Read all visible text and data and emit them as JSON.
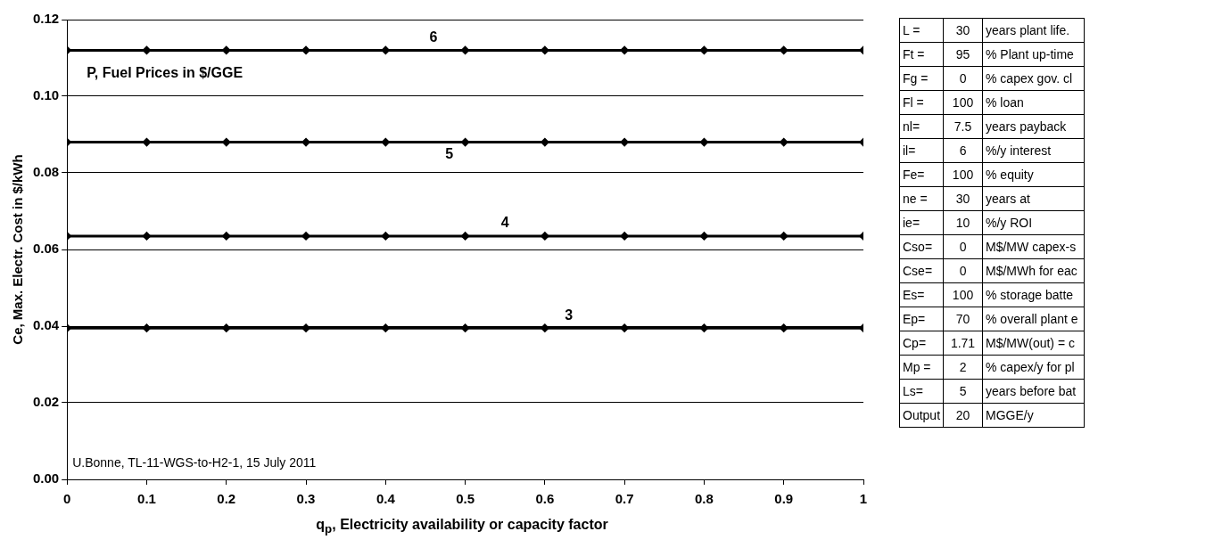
{
  "chart_data": [
    {
      "type": "line",
      "xlabel": "q$_{p}$, Electricity availability or capacity factor",
      "ylabel": "Ce, Max. Electr. Cost in $/kWh",
      "x": [
        0,
        0.1,
        0.2,
        0.3,
        0.4,
        0.5,
        0.6,
        0.7,
        0.8,
        0.9,
        1
      ],
      "series": [
        {
          "name": "6",
          "color": "#000000",
          "values": [
            0.112,
            0.112,
            0.112,
            0.112,
            0.112,
            0.112,
            0.112,
            0.112,
            0.112,
            0.112,
            0.112
          ]
        },
        {
          "name": "5",
          "color": "#000000",
          "values": [
            0.088,
            0.088,
            0.088,
            0.088,
            0.088,
            0.088,
            0.088,
            0.088,
            0.088,
            0.088,
            0.088
          ]
        },
        {
          "name": "4",
          "color": "#000000",
          "values": [
            0.0635,
            0.0635,
            0.0635,
            0.0635,
            0.0635,
            0.0635,
            0.0635,
            0.0635,
            0.0635,
            0.0635,
            0.0635
          ]
        },
        {
          "name": "3",
          "color": "#000000",
          "values": [
            0.0395,
            0.0395,
            0.0395,
            0.0395,
            0.0395,
            0.0395,
            0.0395,
            0.0395,
            0.0395,
            0.0395,
            0.0395
          ]
        }
      ],
      "xlim": [
        0,
        1
      ],
      "xticks": [
        0,
        0.1,
        0.2,
        0.3,
        0.4,
        0.5,
        0.6,
        0.7,
        0.8,
        0.9,
        1
      ],
      "ylim": [
        0,
        0.12
      ],
      "yticks": [
        {
          "value": 0,
          "label": "0.00"
        },
        {
          "value": 0.02,
          "label": "0.02"
        },
        {
          "value": 0.04,
          "label": "0.04"
        },
        {
          "value": 0.06,
          "label": "0.06"
        },
        {
          "value": 0.08,
          "label": "0.08"
        },
        {
          "value": 0.1,
          "label": "0.10"
        },
        {
          "value": 0.12,
          "label": "0.12"
        }
      ],
      "grid": "y",
      "legend": false,
      "marker": "diamond",
      "line_style": "solid",
      "annotations": [
        "P, Fuel Prices in $/GGE",
        "U.Bonne, TL-11-WGS-to-H2-1, 15 July 2011"
      ]
    },
    {
      "type": "other",
      "annotations": [
        "L =",
        "30",
        "years plant life.",
        "Ft =",
        "95",
        "% Plant up-time",
        "Fg =",
        "0",
        "% capex gov. cl",
        "Fl =",
        "100",
        "% loan",
        "nl=",
        "7.5",
        "years payback",
        "il=",
        "6",
        "%/y interest",
        "Fe=",
        "100",
        "% equity",
        "ne =",
        "30",
        "years at",
        "ie=",
        "10",
        "%/y ROI",
        "Cso=",
        "0",
        "M$/MW capex-s",
        "Cse=",
        "0",
        "M$/MWh for eac",
        "Es=",
        "100",
        "% storage batte",
        "Ep=",
        "70",
        "% overall plant e",
        "Cp=",
        "1.71",
        "M$/MW(out) = c",
        "Mp =",
        "2",
        "% capex/y for pl",
        "Ls=",
        "5",
        "years before bat",
        "Output",
        "20",
        "MGGE/y"
      ]
    }
  ]
}
